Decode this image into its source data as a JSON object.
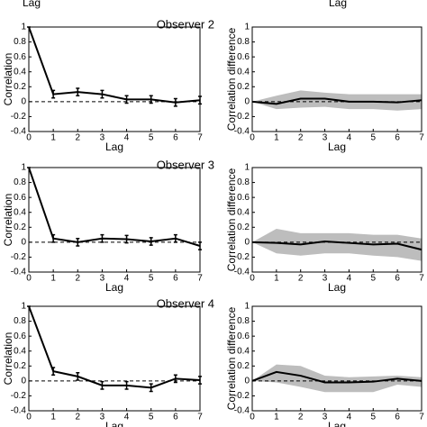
{
  "cropped_labels": [
    "Lag",
    "Lag"
  ],
  "chart_data": [
    {
      "type": "line",
      "title": "Observer 2",
      "xlabel": "Lag",
      "ylabel": "Correlation",
      "x": [
        0,
        1,
        2,
        3,
        4,
        5,
        6,
        7
      ],
      "xlim": [
        0,
        7
      ],
      "ylim": [
        -0.4,
        1
      ],
      "xticks": [
        0,
        1,
        2,
        3,
        4,
        5,
        6,
        7
      ],
      "yticks": [
        1,
        0.8,
        0.6,
        0.4,
        0.2,
        0,
        -0.2,
        -0.4
      ],
      "hline": 0,
      "color": "#000000",
      "series": [
        {
          "values": [
            1,
            0.1,
            0.13,
            0.1,
            0.03,
            0.03,
            -0.01,
            0.02
          ],
          "errors": [
            0,
            0.05,
            0.05,
            0.05,
            0.05,
            0.05,
            0.05,
            0.05
          ]
        }
      ]
    },
    {
      "type": "line",
      "xlabel": "Lag",
      "ylabel": "Correlation difference",
      "x": [
        0,
        1,
        2,
        3,
        4,
        5,
        6,
        7
      ],
      "xlim": [
        0,
        7
      ],
      "ylim": [
        -0.4,
        1
      ],
      "xticks": [
        0,
        1,
        2,
        3,
        4,
        5,
        6,
        7
      ],
      "yticks": [
        1,
        0.8,
        0.6,
        0.4,
        0.2,
        0,
        -0.2,
        -0.4
      ],
      "hline": 0,
      "color": "#000000",
      "band_color": "#bdbdbd",
      "series": [
        {
          "values": [
            0,
            -0.03,
            0.04,
            0.04,
            0,
            0,
            -0.01,
            0.02
          ]
        }
      ],
      "band": {
        "upper": [
          0,
          0.08,
          0.15,
          0.12,
          0.1,
          0.1,
          0.1,
          0.1
        ],
        "lower": [
          0,
          -0.1,
          -0.08,
          -0.07,
          -0.1,
          -0.1,
          -0.12,
          -0.1
        ]
      }
    },
    {
      "type": "line",
      "title": "Observer 3",
      "xlabel": "Lag",
      "ylabel": "Correlation",
      "x": [
        0,
        1,
        2,
        3,
        4,
        5,
        6,
        7
      ],
      "xlim": [
        0,
        7
      ],
      "ylim": [
        -0.4,
        1
      ],
      "xticks": [
        0,
        1,
        2,
        3,
        4,
        5,
        6,
        7
      ],
      "yticks": [
        1,
        0.8,
        0.6,
        0.4,
        0.2,
        0,
        -0.2,
        -0.4
      ],
      "hline": 0,
      "color": "#000000",
      "series": [
        {
          "values": [
            1,
            0.05,
            0,
            0.05,
            0.04,
            0.01,
            0.05,
            -0.05
          ],
          "errors": [
            0,
            0.05,
            0.05,
            0.05,
            0.05,
            0.05,
            0.05,
            0.05
          ]
        }
      ]
    },
    {
      "type": "line",
      "xlabel": "Lag",
      "ylabel": "Correlation difference",
      "x": [
        0,
        1,
        2,
        3,
        4,
        5,
        6,
        7
      ],
      "xlim": [
        0,
        7
      ],
      "ylim": [
        -0.4,
        1
      ],
      "xticks": [
        0,
        1,
        2,
        3,
        4,
        5,
        6,
        7
      ],
      "yticks": [
        1,
        0.8,
        0.6,
        0.4,
        0.2,
        0,
        -0.2,
        -0.4
      ],
      "hline": 0,
      "color": "#000000",
      "band_color": "#bdbdbd",
      "series": [
        {
          "values": [
            0,
            -0.01,
            -0.03,
            0.01,
            -0.01,
            -0.03,
            -0.02,
            -0.1
          ]
        }
      ],
      "band": {
        "upper": [
          0,
          0.18,
          0.12,
          0.12,
          0.12,
          0.1,
          0.1,
          0.05
        ],
        "lower": [
          0,
          -0.15,
          -0.18,
          -0.15,
          -0.15,
          -0.18,
          -0.2,
          -0.25
        ]
      }
    },
    {
      "type": "line",
      "title": "Observer 4",
      "xlabel": "Lag",
      "ylabel": "Correlation",
      "x": [
        0,
        1,
        2,
        3,
        4,
        5,
        6,
        7
      ],
      "xlim": [
        0,
        7
      ],
      "ylim": [
        -0.4,
        1
      ],
      "xticks": [
        0,
        1,
        2,
        3,
        4,
        5,
        6,
        7
      ],
      "yticks": [
        1,
        0.8,
        0.6,
        0.4,
        0.2,
        0,
        -0.2,
        -0.4
      ],
      "hline": 0,
      "color": "#000000",
      "series": [
        {
          "values": [
            1,
            0.13,
            0.06,
            -0.06,
            -0.06,
            -0.09,
            0.03,
            0.01
          ],
          "errors": [
            0,
            0.05,
            0.05,
            0.05,
            0.05,
            0.05,
            0.05,
            0.05
          ]
        }
      ]
    },
    {
      "type": "line",
      "xlabel": "Lag",
      "ylabel": "Correlation difference",
      "x": [
        0,
        1,
        2,
        3,
        4,
        5,
        6,
        7
      ],
      "xlim": [
        0,
        7
      ],
      "ylim": [
        -0.4,
        1
      ],
      "xticks": [
        0,
        1,
        2,
        3,
        4,
        5,
        6,
        7
      ],
      "yticks": [
        1,
        0.8,
        0.6,
        0.4,
        0.2,
        0,
        -0.2,
        -0.4
      ],
      "hline": 0,
      "color": "#000000",
      "band_color": "#bdbdbd",
      "series": [
        {
          "values": [
            0,
            0.12,
            0.07,
            -0.02,
            -0.02,
            -0.01,
            0.03,
            0
          ]
        }
      ],
      "band": {
        "upper": [
          0,
          0.22,
          0.2,
          0.07,
          0.05,
          0.06,
          0.07,
          0.05
        ],
        "lower": [
          0,
          -0.02,
          -0.08,
          -0.15,
          -0.15,
          -0.15,
          -0.05,
          -0.08
        ]
      }
    }
  ]
}
